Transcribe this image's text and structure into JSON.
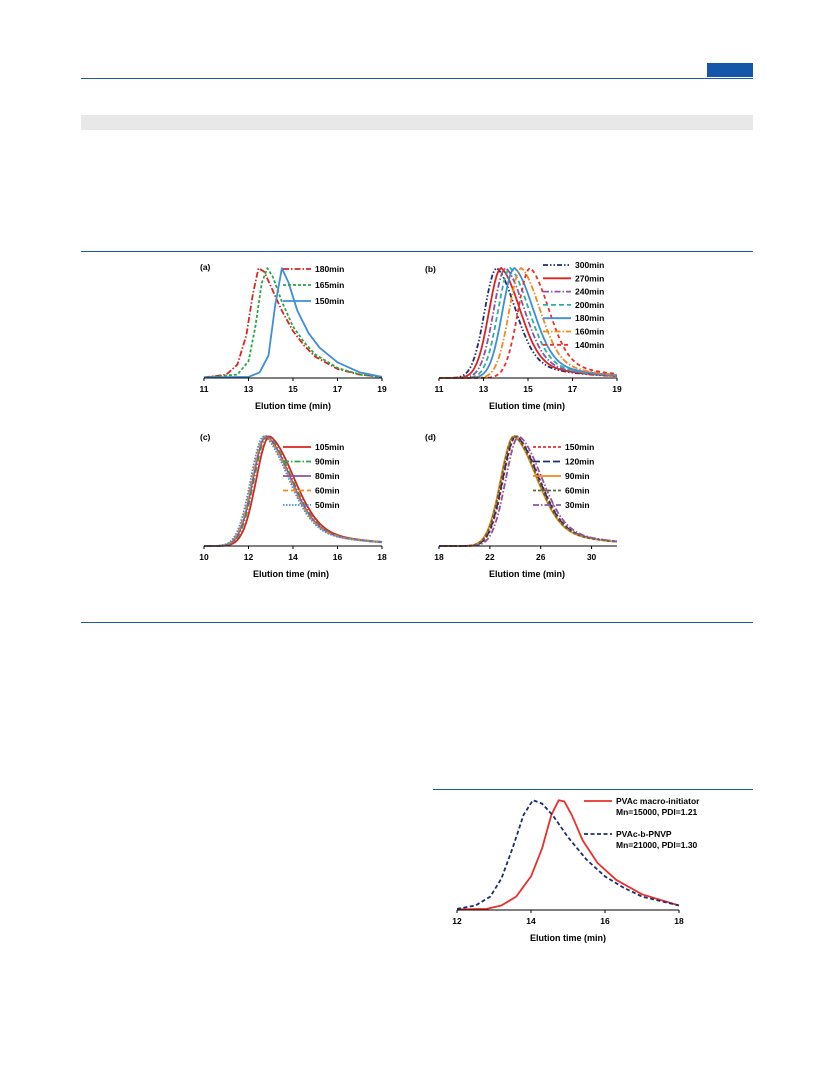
{
  "chart_data": [
    {
      "type": "line",
      "panel_label": "(a)",
      "xlabel": "Elution time (min)",
      "xlim": [
        11,
        19
      ],
      "xticks": [
        11,
        13,
        15,
        17,
        19
      ],
      "ylim": [
        0,
        1
      ],
      "series": [
        {
          "name": "180min",
          "color": "#d7261e",
          "dash": "6,2,1.5,2",
          "x": [
            11,
            12,
            12.5,
            12.9,
            13.2,
            13.45,
            13.7,
            14,
            14.5,
            15,
            15.5,
            16,
            17,
            18,
            19
          ],
          "y": [
            0.005,
            0.03,
            0.12,
            0.38,
            0.75,
            0.98,
            0.95,
            0.82,
            0.6,
            0.42,
            0.29,
            0.19,
            0.08,
            0.03,
            0.01
          ]
        },
        {
          "name": "165min",
          "color": "#2aa64a",
          "dash": "3,2",
          "x": [
            11,
            12.5,
            13,
            13.3,
            13.6,
            13.85,
            14.1,
            14.5,
            15,
            15.5,
            16,
            17,
            18,
            19
          ],
          "y": [
            0.005,
            0.03,
            0.15,
            0.45,
            0.85,
            0.98,
            0.9,
            0.68,
            0.46,
            0.32,
            0.21,
            0.09,
            0.03,
            0.01
          ]
        },
        {
          "name": "150min",
          "color": "#3f8ed6",
          "dash": "",
          "x": [
            11,
            13,
            13.5,
            13.9,
            14.2,
            14.5,
            14.8,
            15.2,
            15.7,
            16.2,
            17,
            18,
            19
          ],
          "y": [
            0.005,
            0.01,
            0.05,
            0.2,
            0.65,
            0.98,
            0.85,
            0.6,
            0.4,
            0.27,
            0.14,
            0.05,
            0.01
          ]
        }
      ]
    },
    {
      "type": "line",
      "panel_label": "(b)",
      "xlabel": "Elution time (min)",
      "xlim": [
        11,
        19
      ],
      "xticks": [
        11,
        13,
        15,
        17,
        19
      ],
      "ylim": [
        0,
        1
      ],
      "series": [
        {
          "name": "300min",
          "color": "#1d2e6e",
          "dash": "5,2,1.5,2,1.5,2",
          "peak": 13.6
        },
        {
          "name": "270min",
          "color": "#d7261e",
          "dash": "",
          "peak": 13.8
        },
        {
          "name": "240min",
          "color": "#8a55a0",
          "dash": "6,2,1.5,2",
          "peak": 14.0
        },
        {
          "name": "200min",
          "color": "#2ab0a0",
          "dash": "5,3",
          "peak": 14.2
        },
        {
          "name": "180min",
          "color": "#3f8ed6",
          "dash": "",
          "peak": 14.4
        },
        {
          "name": "160min",
          "color": "#f28a1e",
          "dash": "6,2,1.5,2",
          "peak": 14.7
        },
        {
          "name": "140min",
          "color": "#e8302a",
          "dash": "4,3",
          "peak": 15.1
        }
      ]
    },
    {
      "type": "line",
      "panel_label": "(c)",
      "xlabel": "Elution time (min)",
      "xlim": [
        10,
        18
      ],
      "xticks": [
        10,
        12,
        14,
        16,
        18
      ],
      "ylim": [
        0,
        1
      ],
      "series": [
        {
          "name": "105min",
          "color": "#d7261e",
          "dash": "",
          "peak": 12.95
        },
        {
          "name": "90min",
          "color": "#2aa64a",
          "dash": "6,2,1.5,2",
          "peak": 12.85
        },
        {
          "name": "80min",
          "color": "#8a55a0",
          "dash": "",
          "peak": 12.8
        },
        {
          "name": "60min",
          "color": "#f28a1e",
          "dash": "5,3",
          "peak": 12.75
        },
        {
          "name": "50min",
          "color": "#3f8ed6",
          "dash": "1.5,1.5",
          "peak": 12.7
        }
      ]
    },
    {
      "type": "line",
      "panel_label": "(d)",
      "xlabel": "Elution time (min)",
      "xlim": [
        18,
        32
      ],
      "xticks": [
        18,
        22,
        26,
        30
      ],
      "ylim": [
        0,
        1
      ],
      "series": [
        {
          "name": "150min",
          "color": "#e8302a",
          "dash": "3,2",
          "peak": 24.1
        },
        {
          "name": "120min",
          "color": "#1d2e6e",
          "dash": "7,3",
          "peak": 24.05
        },
        {
          "name": "90min",
          "color": "#f28a1e",
          "dash": "",
          "peak": 23.9
        },
        {
          "name": "60min",
          "color": "#5a6a2a",
          "dash": "3,2",
          "peak": 23.95
        },
        {
          "name": "30min",
          "color": "#8a55a0",
          "dash": "6,2,1.5,2",
          "peak": 24.3
        }
      ]
    },
    {
      "type": "line",
      "xlabel": "Elution time (min)",
      "xlim": [
        12,
        18
      ],
      "xticks": [
        12,
        14,
        16,
        18
      ],
      "ylim": [
        0,
        1
      ],
      "series": [
        {
          "name": "PVAc macro-initiator",
          "sub": "Mn=15000, PDI=1.21",
          "color": "#e8302a",
          "dash": "",
          "x": [
            12,
            12.8,
            13.2,
            13.6,
            14,
            14.3,
            14.55,
            14.75,
            14.9,
            15.1,
            15.4,
            15.8,
            16.3,
            17,
            18
          ],
          "y": [
            0.005,
            0.01,
            0.04,
            0.12,
            0.3,
            0.55,
            0.85,
            0.98,
            0.97,
            0.85,
            0.62,
            0.42,
            0.27,
            0.14,
            0.04
          ]
        },
        {
          "name": "PVAc-b-PNVP",
          "sub": "Mn=21000, PDI=1.30",
          "color": "#1d2e6e",
          "dash": "4,2.5",
          "x": [
            12,
            12.5,
            12.9,
            13.2,
            13.5,
            13.8,
            14.05,
            14.3,
            14.6,
            15,
            15.5,
            16,
            16.5,
            17,
            18
          ],
          "y": [
            0.01,
            0.04,
            0.12,
            0.28,
            0.55,
            0.85,
            0.98,
            0.95,
            0.84,
            0.65,
            0.45,
            0.3,
            0.2,
            0.12,
            0.04
          ]
        }
      ]
    }
  ]
}
